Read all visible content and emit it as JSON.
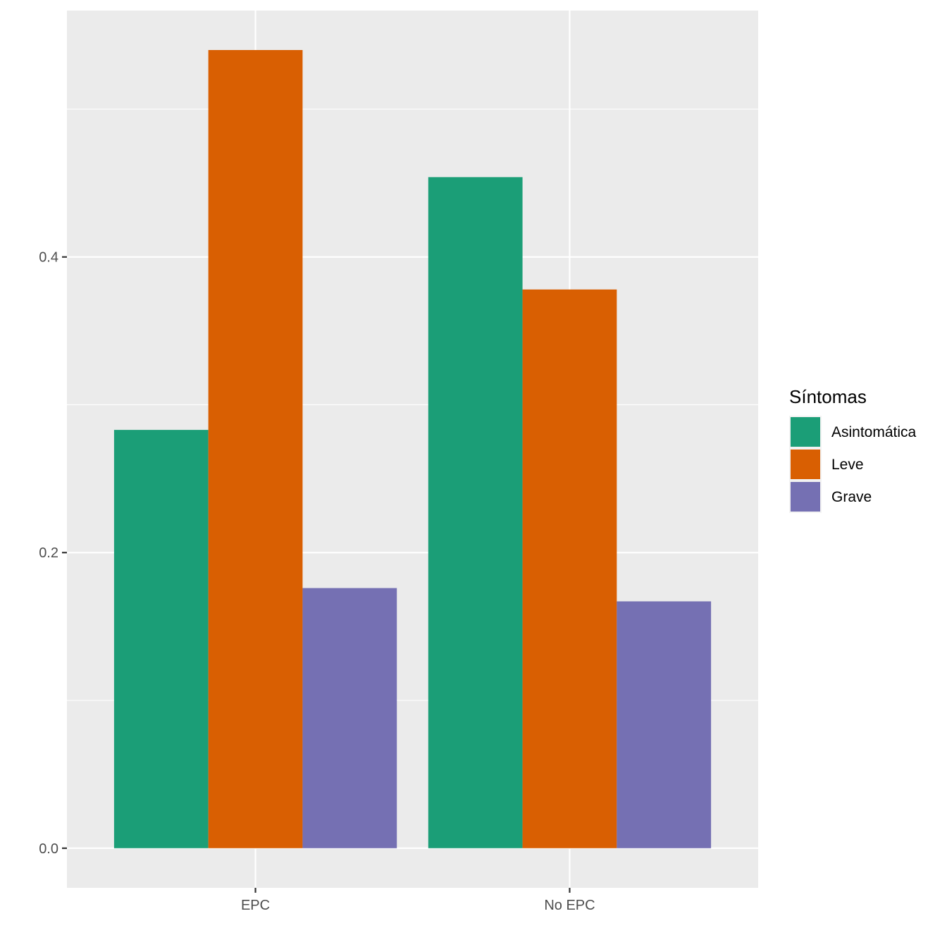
{
  "chart_data": {
    "type": "bar",
    "categories": [
      "EPC",
      "No EPC"
    ],
    "series": [
      {
        "name": "Asintomática",
        "values": [
          0.283,
          0.454
        ],
        "color": "#1B9E77"
      },
      {
        "name": "Leve",
        "values": [
          0.54,
          0.378
        ],
        "color": "#D95F02"
      },
      {
        "name": "Grave",
        "values": [
          0.176,
          0.167
        ],
        "color": "#7570B3"
      }
    ],
    "ylim": [
      -0.0268,
      0.5667
    ],
    "yticks": [
      0.0,
      0.2,
      0.4
    ],
    "ytick_labels": [
      "0.0",
      "0.2",
      "0.4"
    ],
    "grid": true,
    "legend": {
      "title": "Síntomas",
      "position": "right"
    }
  }
}
